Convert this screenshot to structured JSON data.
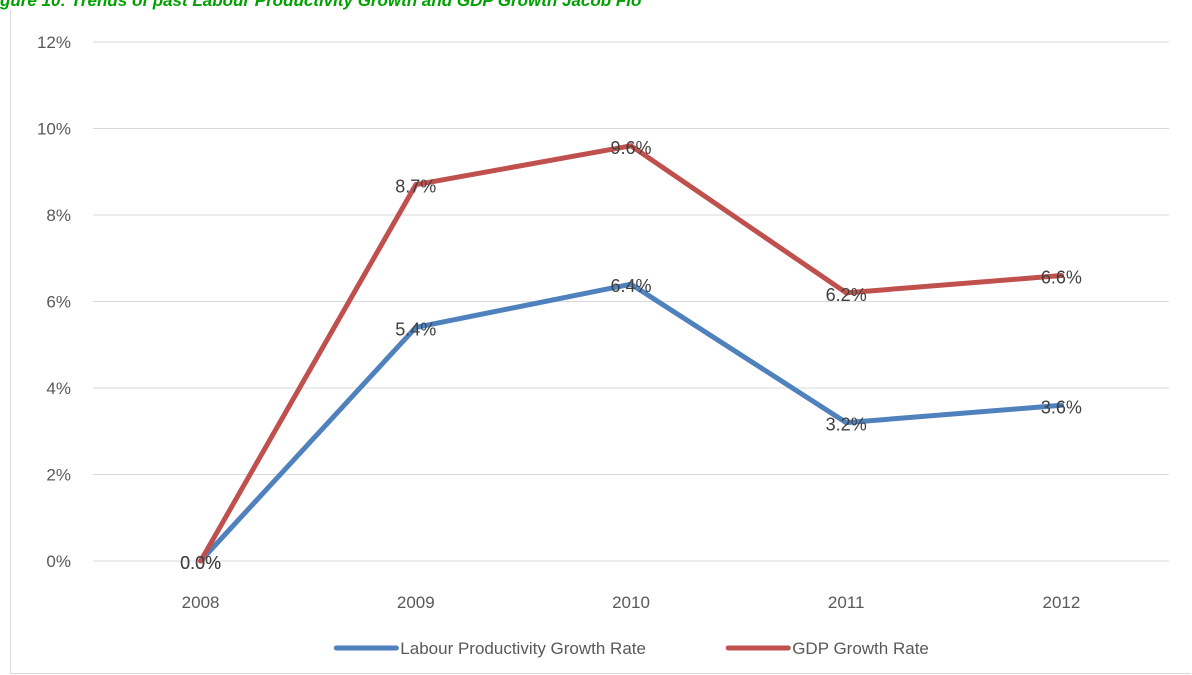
{
  "caption": "gure 10: Trends of past Labour Productivity Growth and GDP Growth Jacob Flo",
  "chart_data": {
    "type": "line",
    "title": "",
    "xlabel": "",
    "ylabel": "",
    "categories": [
      "2008",
      "2009",
      "2010",
      "2011",
      "2012"
    ],
    "ylim": [
      0,
      12
    ],
    "ytick_step": 2,
    "ytick_format": "percent",
    "grid": true,
    "legend_position": "bottom",
    "series": [
      {
        "name": "Labour Productivity Growth Rate",
        "color": "#4f81bd",
        "values": [
          0.0,
          5.4,
          6.4,
          3.2,
          3.6
        ],
        "labels": [
          "0.0%",
          "5.4%",
          "6.4%",
          "3.2%",
          "3.6%"
        ]
      },
      {
        "name": "GDP Growth Rate",
        "color": "#c0504d",
        "values": [
          0.0,
          8.7,
          9.6,
          6.2,
          6.6
        ],
        "labels": [
          "0.0%",
          "8.7%",
          "9.6%",
          "6.2%",
          "6.6%"
        ]
      }
    ]
  }
}
